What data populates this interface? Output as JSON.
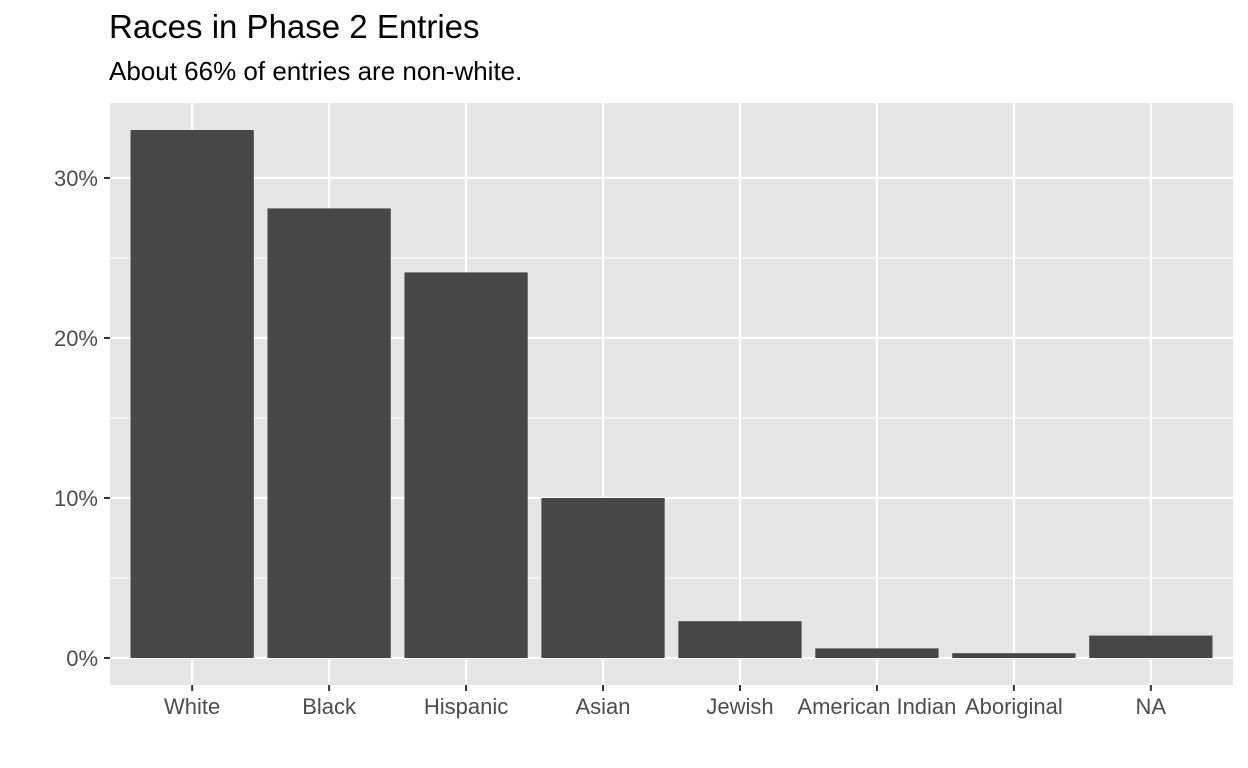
{
  "chart_data": {
    "type": "bar",
    "title": "Races in Phase 2 Entries",
    "subtitle": "About 66% of entries are non-white.",
    "xlabel": "",
    "ylabel": "",
    "categories": [
      "White",
      "Black",
      "Hispanic",
      "Asian",
      "Jewish",
      "American Indian",
      "Aboriginal",
      "NA"
    ],
    "values": [
      33.0,
      28.1,
      24.1,
      10.0,
      2.3,
      0.6,
      0.3,
      1.4
    ],
    "value_unit": "%",
    "ylim": [
      0,
      34.5
    ],
    "yticks": [
      0,
      10,
      20,
      30
    ],
    "ytick_labels": [
      "0%",
      "10%",
      "20%",
      "30%"
    ],
    "grid": true,
    "colors": {
      "bar": "#474747",
      "panel": "#e5e5e5",
      "grid": "#ffffff",
      "text": "#4d4d4d",
      "tick": "#333333"
    }
  }
}
